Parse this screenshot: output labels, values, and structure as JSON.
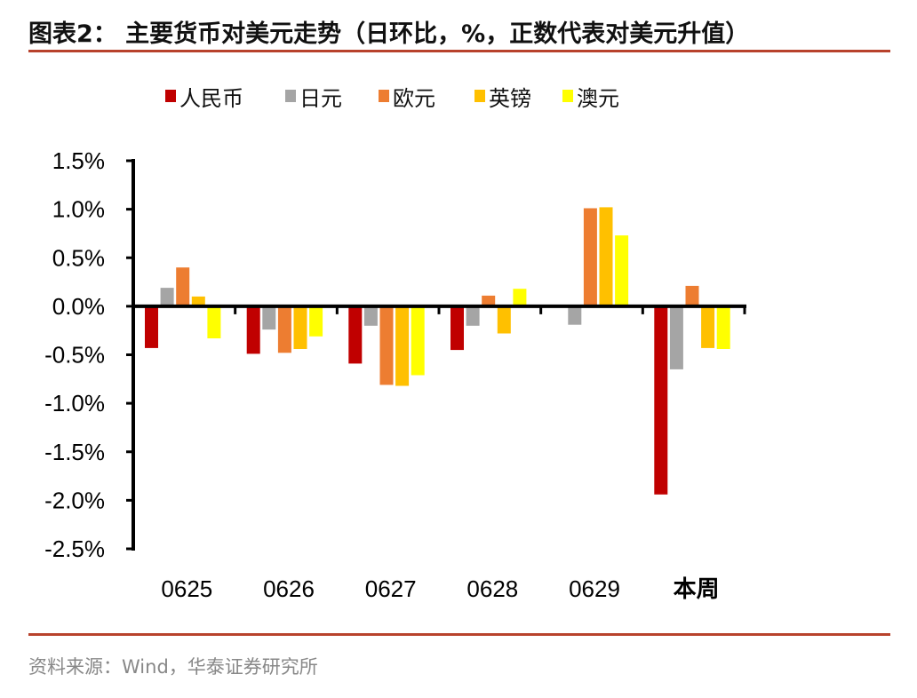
{
  "title": "图表2： 主要货币对美元走势（日环比，%，正数代表对美元升值）",
  "source": "资料来源：Wind，华泰证券研究所",
  "chart_data": {
    "type": "bar",
    "title": "图表2： 主要货币对美元走势（日环比，%，正数代表对美元升值）",
    "xlabel": "",
    "ylabel": "",
    "categories": [
      "0625",
      "0626",
      "0627",
      "0628",
      "0629",
      "本周"
    ],
    "ylim": [
      -2.5,
      1.5
    ],
    "yticks": [
      1.5,
      1.0,
      0.5,
      0.0,
      -0.5,
      -1.0,
      -1.5,
      -2.0,
      -2.5
    ],
    "ytick_labels": [
      "1.5%",
      "1.0%",
      "0.5%",
      "0.0%",
      "-0.5%",
      "-1.0%",
      "-1.5%",
      "-2.0%",
      "-2.5%"
    ],
    "grid": false,
    "legend_position": "top",
    "series": [
      {
        "name": "人民币",
        "color": "#c00000",
        "values": [
          -0.43,
          -0.49,
          -0.59,
          -0.45,
          0.0,
          -1.94
        ]
      },
      {
        "name": "日元",
        "color": "#a5a5a5",
        "values": [
          0.19,
          -0.24,
          -0.2,
          -0.2,
          -0.19,
          -0.65
        ]
      },
      {
        "name": "欧元",
        "color": "#ed7d31",
        "values": [
          0.4,
          -0.48,
          -0.81,
          0.11,
          1.01,
          0.21
        ]
      },
      {
        "name": "英镑",
        "color": "#ffc000",
        "values": [
          0.1,
          -0.44,
          -0.82,
          -0.28,
          1.02,
          -0.43
        ]
      },
      {
        "name": "澳元",
        "color": "#ffff00",
        "values": [
          -0.33,
          -0.31,
          -0.71,
          0.18,
          0.73,
          -0.44
        ]
      }
    ]
  }
}
